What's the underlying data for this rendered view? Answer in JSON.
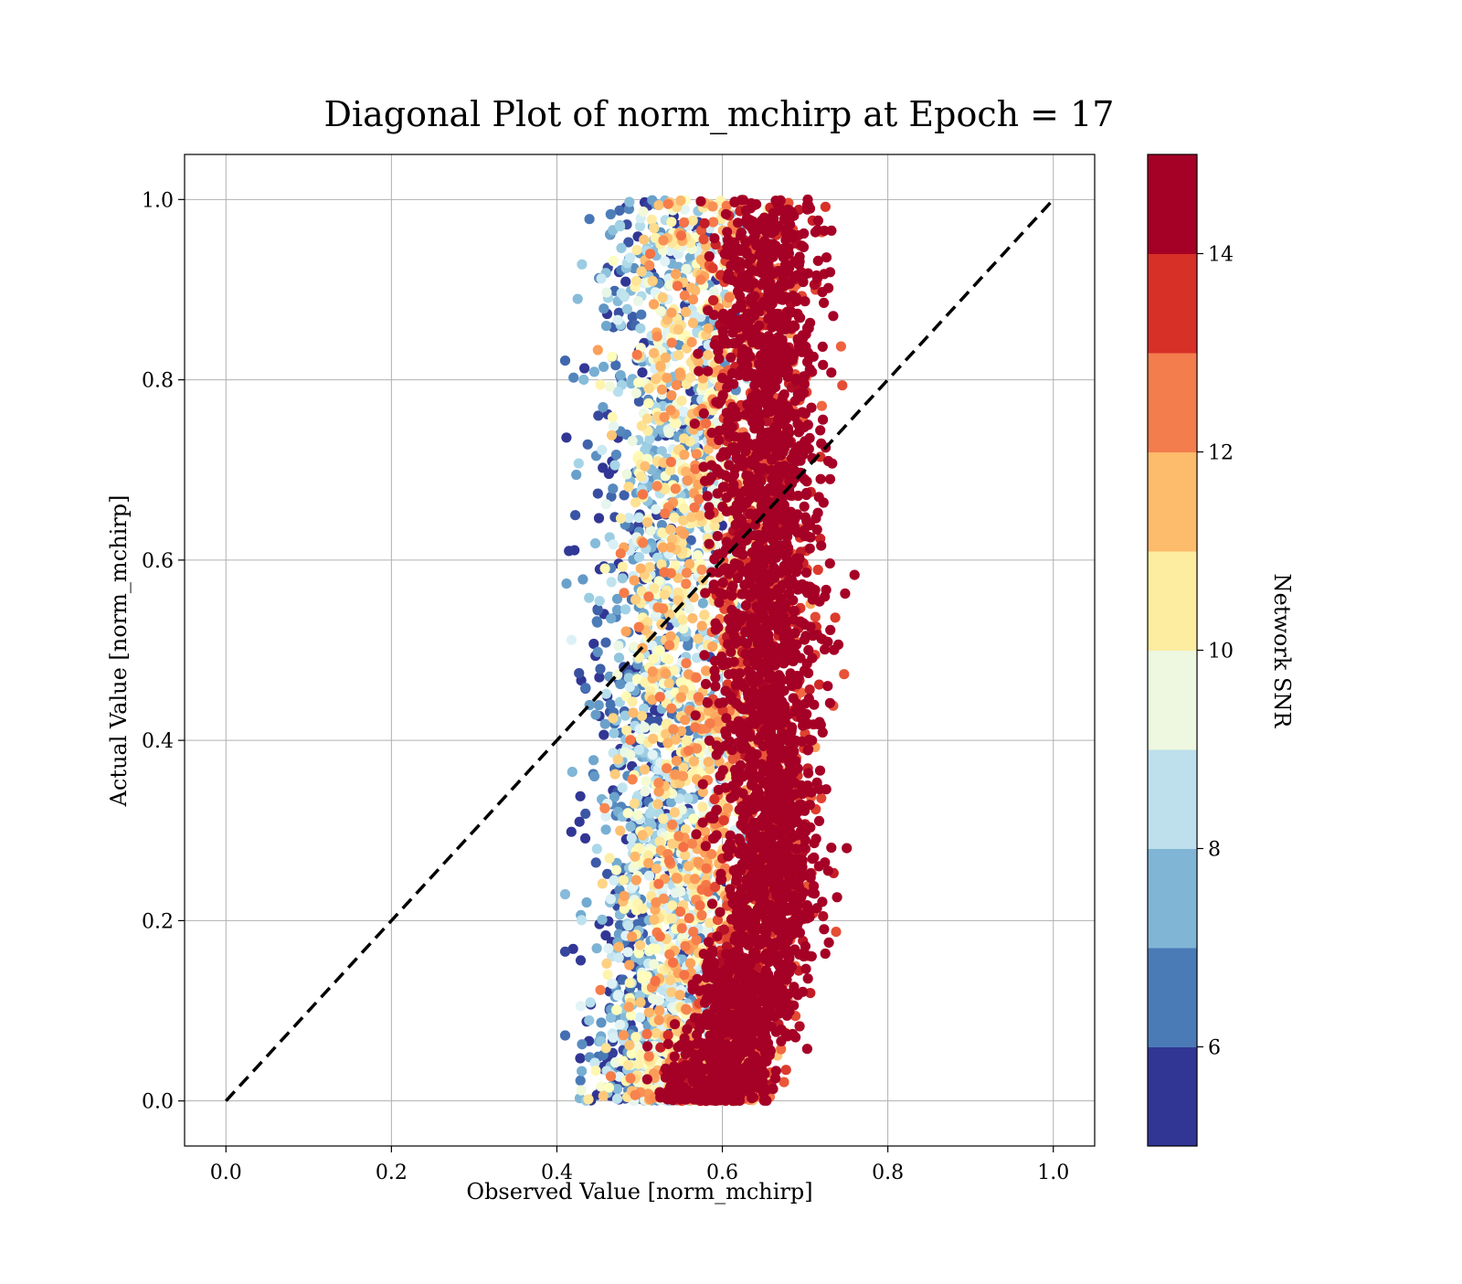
{
  "chart_data": {
    "type": "scatter",
    "title": "Diagonal Plot of norm_mchirp at Epoch = 17",
    "xlabel": "Observed Value [norm_mchirp]",
    "ylabel": "Actual Value [norm_mchirp]",
    "xlim": [
      -0.05,
      1.05
    ],
    "ylim": [
      -0.05,
      1.05
    ],
    "x_ticks": [
      "0.0",
      "0.2",
      "0.4",
      "0.6",
      "0.8",
      "1.0"
    ],
    "y_ticks": [
      "0.0",
      "0.2",
      "0.4",
      "0.6",
      "0.8",
      "1.0"
    ],
    "grid": true,
    "reference_line": {
      "style": "dashed",
      "color": "#000000",
      "from": [
        0,
        0
      ],
      "to": [
        1,
        1
      ]
    },
    "colorbar": {
      "label": "Network SNR",
      "range": [
        5,
        15
      ],
      "ticks": [
        "6",
        "8",
        "10",
        "12",
        "14"
      ],
      "colors": [
        "#313695",
        "#4575b4",
        "#74add1",
        "#abd9e9",
        "#e0f3f8",
        "#ffffbf",
        "#fee090",
        "#fdae61",
        "#f46d43",
        "#d73027",
        "#a50026"
      ],
      "bands": [
        "#313695",
        "#4a7bb7",
        "#80b5d6",
        "#bee0ec",
        "#eef7e0",
        "#fdeda1",
        "#fdbb6c",
        "#f47d4d",
        "#d73027",
        "#a50026"
      ]
    },
    "points_description_series": [
      {
        "name": "",
        "x_range": [
          0.4,
          0.8
        ],
        "y_range": [
          0.0,
          1.0
        ],
        "color_by": "Network SNR"
      }
    ]
  }
}
